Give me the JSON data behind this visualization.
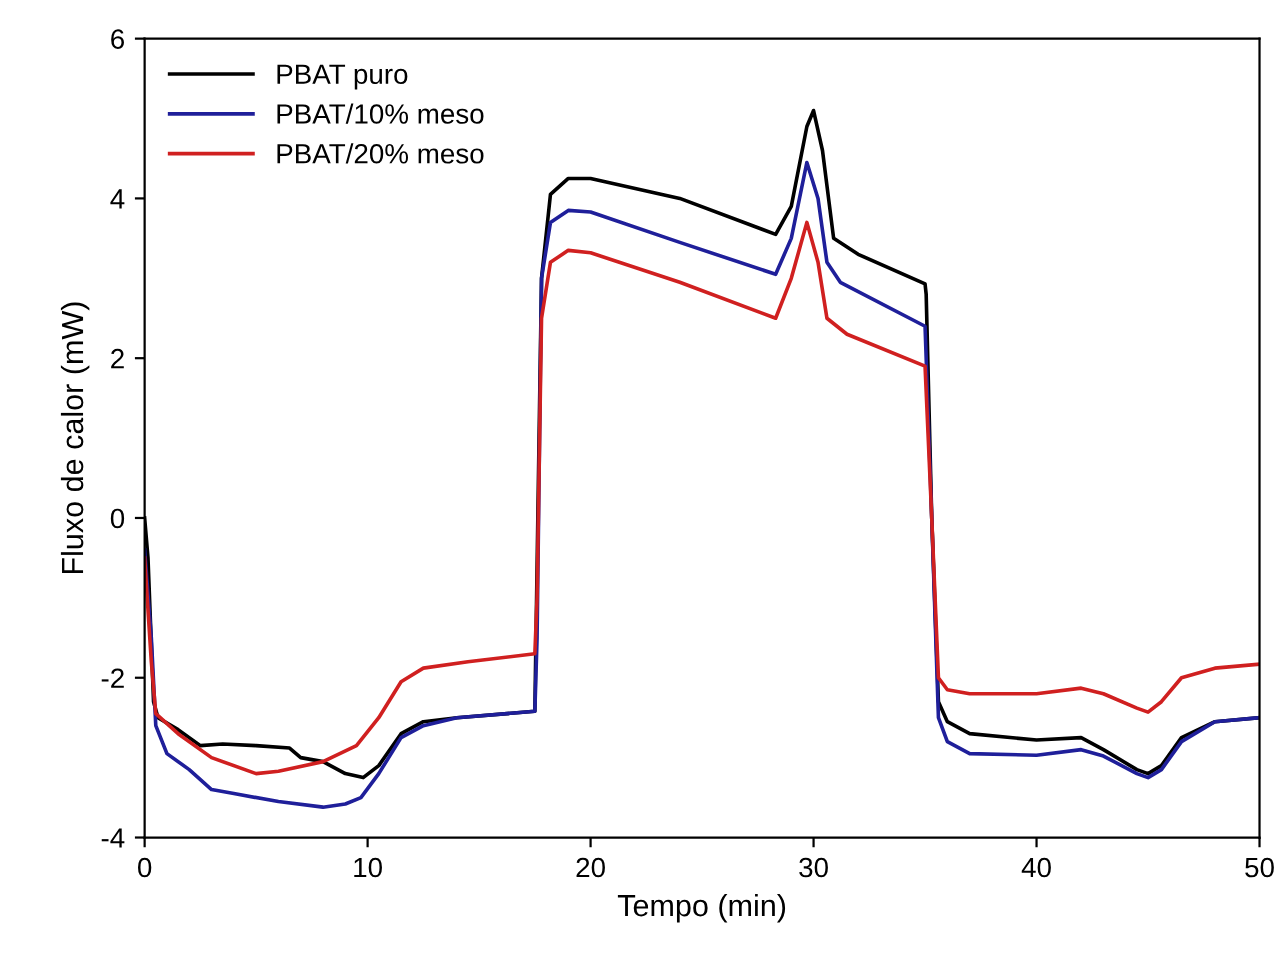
{
  "chart_data": {
    "type": "line",
    "xlabel": "Tempo (min)",
    "ylabel": "Fluxo de calor (mW)",
    "xlim": [
      0,
      50
    ],
    "ylim": [
      -4,
      6
    ],
    "xticks": [
      0,
      10,
      20,
      30,
      40,
      50
    ],
    "yticks": [
      -4,
      -2,
      0,
      2,
      4,
      6
    ],
    "grid": false,
    "legend": "top left",
    "line_style": "solid",
    "marker": "none",
    "series": [
      {
        "name": "PBAT puro",
        "color": "#000000",
        "x": [
          0,
          0.15,
          0.4,
          0.6,
          1.5,
          2.5,
          3.5,
          5,
          6.5,
          7,
          8,
          9,
          9.8,
          10.5,
          11.5,
          12.5,
          14,
          17.5,
          17.8,
          18.2,
          19,
          20,
          24,
          28.3,
          29,
          29.7,
          30,
          30.4,
          30.9,
          32,
          35,
          35.05,
          35.3,
          35.6,
          36,
          37,
          40,
          42,
          43,
          44.5,
          45,
          45.6,
          46.5,
          48,
          50
        ],
        "values": [
          0,
          -0.5,
          -2.3,
          -2.5,
          -2.65,
          -2.85,
          -2.83,
          -2.85,
          -2.88,
          -3.0,
          -3.05,
          -3.2,
          -3.25,
          -3.1,
          -2.7,
          -2.55,
          -2.5,
          -2.42,
          3.0,
          4.05,
          4.25,
          4.25,
          4.0,
          3.55,
          3.9,
          4.9,
          5.1,
          4.6,
          3.5,
          3.3,
          2.93,
          2.8,
          0,
          -2.3,
          -2.55,
          -2.7,
          -2.78,
          -2.75,
          -2.9,
          -3.15,
          -3.2,
          -3.1,
          -2.75,
          -2.55,
          -2.5
        ]
      },
      {
        "name": "PBAT/10% meso",
        "color": "#1f1f9a",
        "x": [
          0,
          0.3,
          0.5,
          1,
          2,
          3,
          4,
          6,
          8,
          9,
          9.7,
          10.5,
          11.5,
          12.5,
          14,
          17.5,
          17.6,
          17.8,
          18.2,
          19,
          20,
          24,
          28.3,
          29,
          29.7,
          30.2,
          30.6,
          31.2,
          35,
          35.3,
          35.6,
          36,
          37,
          40,
          42,
          43,
          44.5,
          45,
          45.6,
          46.5,
          48,
          50
        ],
        "values": [
          -0.4,
          -1.5,
          -2.6,
          -2.95,
          -3.15,
          -3.4,
          -3.45,
          -3.55,
          -3.62,
          -3.58,
          -3.5,
          -3.2,
          -2.75,
          -2.6,
          -2.5,
          -2.42,
          -1.5,
          3.0,
          3.7,
          3.85,
          3.83,
          3.45,
          3.05,
          3.5,
          4.45,
          4.0,
          3.2,
          2.95,
          2.4,
          0,
          -2.5,
          -2.8,
          -2.95,
          -2.97,
          -2.9,
          -2.98,
          -3.2,
          -3.25,
          -3.15,
          -2.8,
          -2.55,
          -2.5
        ]
      },
      {
        "name": "PBAT/20% meso",
        "color": "#d02020",
        "x": [
          0,
          0.3,
          0.5,
          1.5,
          3,
          5,
          6,
          8,
          9.5,
          10.5,
          11.5,
          12.5,
          14.5,
          17.5,
          17.6,
          17.8,
          18.2,
          19,
          20,
          24,
          28.3,
          29,
          29.7,
          30.2,
          30.6,
          31.5,
          35,
          35.3,
          35.6,
          36,
          37,
          40,
          42,
          43,
          44.5,
          45,
          45.6,
          46.5,
          48,
          50
        ],
        "values": [
          -0.5,
          -1.8,
          -2.45,
          -2.7,
          -3.0,
          -3.2,
          -3.17,
          -3.05,
          -2.85,
          -2.5,
          -2.05,
          -1.88,
          -1.8,
          -1.7,
          -1.0,
          2.5,
          3.2,
          3.35,
          3.32,
          2.95,
          2.5,
          3.0,
          3.7,
          3.2,
          2.5,
          2.3,
          1.9,
          0,
          -2.0,
          -2.15,
          -2.2,
          -2.2,
          -2.13,
          -2.2,
          -2.38,
          -2.43,
          -2.3,
          -2.0,
          -1.88,
          -1.83
        ]
      }
    ]
  }
}
